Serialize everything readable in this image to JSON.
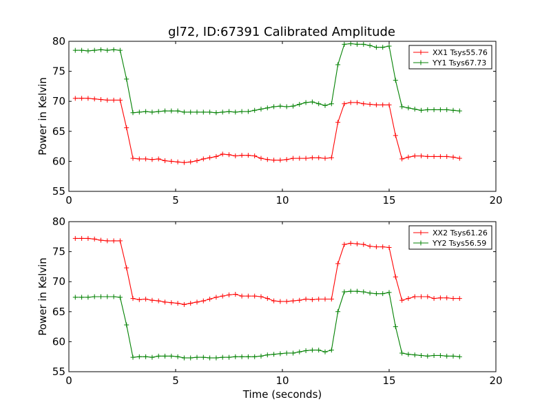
{
  "figure_title": "gl72, ID:67391 Calibrated Amplitude",
  "xlabel": "Time (seconds)",
  "colors": {
    "XX": "#ff0000",
    "YY": "#008000"
  },
  "chart_data": [
    {
      "type": "line",
      "title": "gl72, ID:67391 Calibrated Amplitude",
      "xlabel": "",
      "ylabel": "Power in Kelvin",
      "xlim": [
        0,
        20
      ],
      "ylim": [
        55,
        80
      ],
      "xticks": [
        0,
        5,
        10,
        15,
        20
      ],
      "yticks": [
        55,
        60,
        65,
        70,
        75,
        80
      ],
      "grid": false,
      "legend_position": "top-right",
      "x": [
        0.3,
        0.6,
        0.9,
        1.2,
        1.5,
        1.8,
        2.1,
        2.4,
        2.7,
        3.0,
        3.3,
        3.6,
        3.9,
        4.2,
        4.5,
        4.8,
        5.1,
        5.4,
        5.7,
        6.0,
        6.3,
        6.6,
        6.9,
        7.2,
        7.5,
        7.8,
        8.1,
        8.4,
        8.7,
        9.0,
        9.3,
        9.6,
        9.9,
        10.2,
        10.5,
        10.8,
        11.1,
        11.4,
        11.7,
        12.0,
        12.3,
        12.6,
        12.9,
        13.2,
        13.5,
        13.8,
        14.1,
        14.4,
        14.7,
        15.0,
        15.3,
        15.6,
        15.9,
        16.2,
        16.5,
        16.8,
        17.1,
        17.4,
        17.7,
        18.0,
        18.3
      ],
      "series": [
        {
          "name": "XX1 Tsys55.76",
          "color": "#ff0000",
          "values": [
            70.5,
            70.5,
            70.5,
            70.4,
            70.3,
            70.2,
            70.2,
            70.2,
            65.6,
            60.5,
            60.4,
            60.4,
            60.3,
            60.4,
            60.1,
            60.0,
            59.9,
            59.8,
            59.9,
            60.1,
            60.4,
            60.6,
            60.8,
            61.2,
            61.1,
            60.9,
            61.0,
            61.0,
            60.9,
            60.5,
            60.3,
            60.2,
            60.2,
            60.3,
            60.5,
            60.5,
            60.5,
            60.6,
            60.6,
            60.5,
            60.6,
            66.5,
            69.6,
            69.8,
            69.8,
            69.6,
            69.5,
            69.4,
            69.4,
            69.4,
            64.3,
            60.4,
            60.7,
            60.9,
            60.9,
            60.8,
            60.8,
            60.8,
            60.8,
            60.7,
            60.5
          ]
        },
        {
          "name": "YY1 Tsys67.73",
          "color": "#008000",
          "values": [
            78.5,
            78.5,
            78.4,
            78.5,
            78.6,
            78.5,
            78.6,
            78.5,
            73.7,
            68.1,
            68.2,
            68.3,
            68.2,
            68.3,
            68.4,
            68.4,
            68.4,
            68.2,
            68.2,
            68.2,
            68.2,
            68.2,
            68.1,
            68.2,
            68.3,
            68.2,
            68.3,
            68.3,
            68.5,
            68.7,
            68.9,
            69.1,
            69.2,
            69.1,
            69.2,
            69.5,
            69.8,
            69.9,
            69.6,
            69.3,
            69.6,
            76.1,
            79.5,
            79.6,
            79.5,
            79.5,
            79.3,
            79.0,
            79.0,
            79.2,
            73.5,
            69.1,
            68.9,
            68.7,
            68.5,
            68.6,
            68.6,
            68.6,
            68.6,
            68.5,
            68.4
          ]
        }
      ]
    },
    {
      "type": "line",
      "title": "",
      "xlabel": "Time (seconds)",
      "ylabel": "Power in Kelvin",
      "xlim": [
        0,
        20
      ],
      "ylim": [
        55,
        80
      ],
      "xticks": [
        0,
        5,
        10,
        15,
        20
      ],
      "yticks": [
        55,
        60,
        65,
        70,
        75,
        80
      ],
      "grid": false,
      "legend_position": "top-right",
      "x": [
        0.3,
        0.6,
        0.9,
        1.2,
        1.5,
        1.8,
        2.1,
        2.4,
        2.7,
        3.0,
        3.3,
        3.6,
        3.9,
        4.2,
        4.5,
        4.8,
        5.1,
        5.4,
        5.7,
        6.0,
        6.3,
        6.6,
        6.9,
        7.2,
        7.5,
        7.8,
        8.1,
        8.4,
        8.7,
        9.0,
        9.3,
        9.6,
        9.9,
        10.2,
        10.5,
        10.8,
        11.1,
        11.4,
        11.7,
        12.0,
        12.3,
        12.6,
        12.9,
        13.2,
        13.5,
        13.8,
        14.1,
        14.4,
        14.7,
        15.0,
        15.3,
        15.6,
        15.9,
        16.2,
        16.5,
        16.8,
        17.1,
        17.4,
        17.7,
        18.0,
        18.3
      ],
      "series": [
        {
          "name": "XX2 Tsys61.26",
          "color": "#ff0000",
          "values": [
            77.2,
            77.2,
            77.2,
            77.1,
            76.9,
            76.8,
            76.8,
            76.8,
            72.3,
            67.2,
            67.0,
            67.1,
            66.9,
            66.8,
            66.6,
            66.5,
            66.4,
            66.2,
            66.4,
            66.6,
            66.8,
            67.1,
            67.4,
            67.6,
            67.8,
            67.9,
            67.6,
            67.6,
            67.6,
            67.5,
            67.2,
            66.8,
            66.7,
            66.7,
            66.8,
            66.9,
            67.1,
            67.0,
            67.1,
            67.1,
            67.1,
            73.0,
            76.2,
            76.4,
            76.3,
            76.2,
            75.9,
            75.8,
            75.8,
            75.7,
            70.8,
            66.9,
            67.2,
            67.5,
            67.5,
            67.5,
            67.2,
            67.3,
            67.3,
            67.2,
            67.2
          ]
        },
        {
          "name": "YY2 Tsys56.59",
          "color": "#008000",
          "values": [
            67.4,
            67.4,
            67.4,
            67.5,
            67.5,
            67.5,
            67.5,
            67.4,
            62.8,
            57.4,
            57.5,
            57.5,
            57.4,
            57.6,
            57.6,
            57.6,
            57.5,
            57.3,
            57.3,
            57.4,
            57.4,
            57.3,
            57.3,
            57.4,
            57.4,
            57.5,
            57.5,
            57.5,
            57.5,
            57.6,
            57.8,
            57.9,
            58.0,
            58.1,
            58.1,
            58.3,
            58.5,
            58.6,
            58.6,
            58.3,
            58.6,
            65.0,
            68.3,
            68.4,
            68.4,
            68.3,
            68.1,
            68.0,
            68.0,
            68.2,
            62.5,
            58.1,
            57.9,
            57.8,
            57.7,
            57.6,
            57.7,
            57.7,
            57.6,
            57.6,
            57.5
          ]
        }
      ]
    }
  ]
}
